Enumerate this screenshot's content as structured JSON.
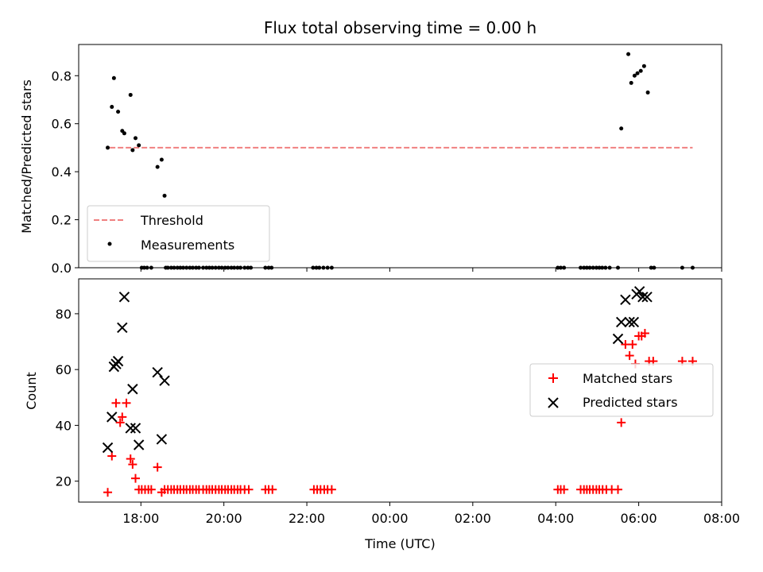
{
  "chart_data": [
    {
      "type": "scatter",
      "title": "Flux total observing time = 0.00 h",
      "xlabel": "",
      "ylabel": "Matched/Predicted stars",
      "xlim": [
        16.5,
        32.0
      ],
      "ylim": [
        0.0,
        0.93
      ],
      "yticks": [
        0.0,
        0.2,
        0.4,
        0.6,
        0.8
      ],
      "ytick_labels": [
        "0.0",
        "0.2",
        "0.4",
        "0.6",
        "0.8"
      ],
      "legend_position": "lower-left",
      "grid": false,
      "threshold": {
        "name": "Threshold",
        "value": 0.5,
        "x_range": [
          17.25,
          31.3
        ],
        "color": "#f08080",
        "style": "dashed"
      },
      "series": [
        {
          "name": "Measurements",
          "color": "#000000",
          "marker": "dot",
          "x": [
            17.2,
            17.3,
            17.35,
            17.45,
            17.55,
            17.6,
            17.75,
            17.8,
            17.87,
            17.95,
            18.4,
            18.5,
            18.57,
            18.02,
            18.08,
            18.15,
            18.25,
            18.6,
            18.65,
            18.73,
            18.8,
            18.88,
            18.95,
            19.02,
            19.1,
            19.18,
            19.25,
            19.33,
            19.4,
            19.5,
            19.58,
            19.65,
            19.72,
            19.8,
            19.88,
            19.95,
            20.03,
            20.1,
            20.18,
            20.25,
            20.33,
            20.4,
            20.5,
            20.58,
            20.65,
            21.0,
            21.08,
            21.15,
            22.15,
            22.23,
            22.3,
            22.4,
            22.5,
            22.6,
            28.05,
            28.12,
            28.2,
            28.6,
            28.68,
            28.75,
            28.82,
            28.9,
            28.98,
            29.05,
            29.12,
            29.2,
            29.3,
            29.5,
            29.58,
            29.75,
            29.82,
            29.9,
            29.97,
            30.05,
            30.13,
            30.22,
            30.3,
            30.37,
            31.05,
            31.3
          ],
          "y": [
            0.5,
            0.67,
            0.79,
            0.65,
            0.57,
            0.56,
            0.72,
            0.49,
            0.54,
            0.51,
            0.42,
            0.45,
            0.3,
            0,
            0,
            0,
            0,
            0,
            0,
            0,
            0,
            0,
            0,
            0,
            0,
            0,
            0,
            0,
            0,
            0,
            0,
            0,
            0,
            0,
            0,
            0,
            0,
            0,
            0,
            0,
            0,
            0,
            0,
            0,
            0,
            0,
            0,
            0,
            0,
            0,
            0,
            0,
            0,
            0,
            0,
            0,
            0,
            0,
            0,
            0,
            0,
            0,
            0,
            0,
            0,
            0,
            0,
            0,
            0.58,
            0.89,
            0.77,
            0.8,
            0.81,
            0.82,
            0.84,
            0.73,
            0,
            0,
            0,
            0
          ]
        }
      ]
    },
    {
      "type": "scatter",
      "title": "",
      "xlabel": "Time (UTC)",
      "ylabel": "Count",
      "xlim": [
        16.5,
        32.0
      ],
      "ylim": [
        12.5,
        92.5
      ],
      "yticks": [
        20,
        40,
        60,
        80
      ],
      "ytick_labels": [
        "20",
        "40",
        "60",
        "80"
      ],
      "xticks": [
        18,
        20,
        22,
        24,
        26,
        28,
        30,
        32
      ],
      "xtick_labels": [
        "18:00",
        "20:00",
        "22:00",
        "00:00",
        "02:00",
        "04:00",
        "06:00",
        "08:00"
      ],
      "legend_position": "center-right",
      "grid": false,
      "series": [
        {
          "name": "Matched stars",
          "color": "#ff0000",
          "marker": "plus",
          "x": [
            17.2,
            17.3,
            17.4,
            17.5,
            17.55,
            17.65,
            17.75,
            17.8,
            17.87,
            18.4,
            18.5,
            17.95,
            18.02,
            18.1,
            18.18,
            18.25,
            18.57,
            18.65,
            18.73,
            18.8,
            18.88,
            18.95,
            19.03,
            19.1,
            19.18,
            19.25,
            19.33,
            19.4,
            19.5,
            19.58,
            19.65,
            19.72,
            19.8,
            19.88,
            19.95,
            20.03,
            20.1,
            20.18,
            20.25,
            20.33,
            20.4,
            20.5,
            20.6,
            21.0,
            21.08,
            21.17,
            22.17,
            22.25,
            22.33,
            22.42,
            22.5,
            22.6,
            28.05,
            28.12,
            28.2,
            28.6,
            28.68,
            28.75,
            28.82,
            28.9,
            28.98,
            29.05,
            29.13,
            29.22,
            29.35,
            29.5,
            29.58,
            29.68,
            29.78,
            29.85,
            29.92,
            30.0,
            30.07,
            30.15,
            30.25,
            30.35,
            31.05,
            31.3
          ],
          "y": [
            16,
            29,
            48,
            41,
            43,
            48,
            28,
            26,
            21,
            25,
            16,
            17,
            17,
            17,
            17,
            17,
            17,
            17,
            17,
            17,
            17,
            17,
            17,
            17,
            17,
            17,
            17,
            17,
            17,
            17,
            17,
            17,
            17,
            17,
            17,
            17,
            17,
            17,
            17,
            17,
            17,
            17,
            17,
            17,
            17,
            17,
            17,
            17,
            17,
            17,
            17,
            17,
            17,
            17,
            17,
            17,
            17,
            17,
            17,
            17,
            17,
            17,
            17,
            17,
            17,
            17,
            41,
            69,
            65,
            69,
            62,
            72,
            72,
            73,
            63,
            63,
            63,
            63
          ]
        },
        {
          "name": "Predicted stars",
          "color": "#000000",
          "marker": "x",
          "x": [
            17.2,
            17.3,
            17.35,
            17.4,
            17.45,
            17.55,
            17.6,
            17.75,
            17.8,
            17.87,
            17.95,
            18.4,
            18.5,
            18.57,
            29.5,
            29.58,
            29.68,
            29.78,
            29.88,
            29.95,
            30.02,
            30.1,
            30.2
          ],
          "y": [
            32,
            43,
            61,
            62,
            63,
            75,
            86,
            39,
            53,
            39,
            33,
            59,
            35,
            56,
            71,
            77,
            85,
            77,
            77,
            87,
            88,
            86,
            86
          ]
        }
      ]
    }
  ]
}
